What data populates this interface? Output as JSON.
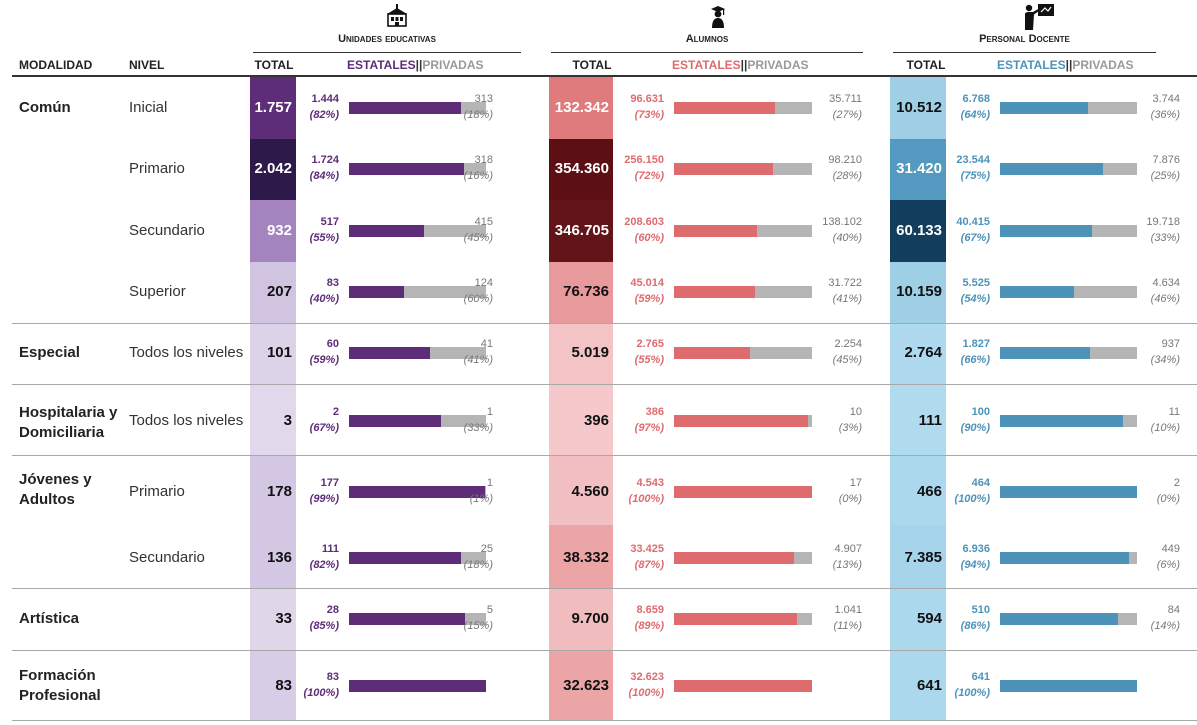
{
  "chart_data": {
    "type": "table",
    "headers": {
      "modalidad": "MODALIDAD",
      "nivel": "NIVEL",
      "total": "TOTAL",
      "estatales": "ESTATALES",
      "separator": "||",
      "privadas": "PRIVADAS"
    },
    "sections": [
      {
        "key": "unidades",
        "title": "Unidades educativas",
        "icon": "school-building-icon",
        "color": "#5e2d79"
      },
      {
        "key": "alumnos",
        "title": "Alumnos",
        "icon": "graduate-student-icon",
        "color": "#de6b6e"
      },
      {
        "key": "docentes",
        "title": "Personal Docente",
        "icon": "teacher-board-icon",
        "color": "#4d93b9"
      }
    ],
    "groups": [
      {
        "modalidad": "Común",
        "rows": [
          {
            "nivel": "Inicial",
            "values": [
              {
                "total": "1.757",
                "estatal": "1.444",
                "estatal_pct": "(82%)",
                "privada": "313",
                "privada_pct": "(18%)",
                "share": 0.82,
                "fill": "#5e2d79",
                "text": "#ffffff"
              },
              {
                "total": "132.342",
                "estatal": "96.631",
                "estatal_pct": "(73%)",
                "privada": "35.711",
                "privada_pct": "(27%)",
                "share": 0.73,
                "fill": "#df7a7d",
                "text": "#ffffff"
              },
              {
                "total": "10.512",
                "estatal": "6.768",
                "estatal_pct": "(64%)",
                "privada": "3.744",
                "privada_pct": "(36%)",
                "share": 0.64,
                "fill": "#9fcfe5",
                "text": "#111111"
              }
            ]
          },
          {
            "nivel": "Primario",
            "values": [
              {
                "total": "2.042",
                "estatal": "1.724",
                "estatal_pct": "(84%)",
                "privada": "318",
                "privada_pct": "(16%)",
                "share": 0.84,
                "fill": "#2e1a4a",
                "text": "#ffffff"
              },
              {
                "total": "354.360",
                "estatal": "256.150",
                "estatal_pct": "(72%)",
                "privada": "98.210",
                "privada_pct": "(28%)",
                "share": 0.72,
                "fill": "#5c1014",
                "text": "#ffffff"
              },
              {
                "total": "31.420",
                "estatal": "23.544",
                "estatal_pct": "(75%)",
                "privada": "7.876",
                "privada_pct": "(25%)",
                "share": 0.75,
                "fill": "#5399c0",
                "text": "#ffffff"
              }
            ]
          },
          {
            "nivel": "Secundario",
            "values": [
              {
                "total": "932",
                "estatal": "517",
                "estatal_pct": "(55%)",
                "privada": "415",
                "privada_pct": "(45%)",
                "share": 0.55,
                "fill": "#a484bf",
                "text": "#ffffff"
              },
              {
                "total": "346.705",
                "estatal": "208.603",
                "estatal_pct": "(60%)",
                "privada": "138.102",
                "privada_pct": "(40%)",
                "share": 0.6,
                "fill": "#621418",
                "text": "#ffffff"
              },
              {
                "total": "60.133",
                "estatal": "40.415",
                "estatal_pct": "(67%)",
                "privada": "19.718",
                "privada_pct": "(33%)",
                "share": 0.67,
                "fill": "#123d5c",
                "text": "#ffffff"
              }
            ]
          },
          {
            "nivel": "Superior",
            "values": [
              {
                "total": "207",
                "estatal": "83",
                "estatal_pct": "(40%)",
                "privada": "124",
                "privada_pct": "(60%)",
                "share": 0.4,
                "fill": "#d0c4e1",
                "text": "#111111"
              },
              {
                "total": "76.736",
                "estatal": "45.014",
                "estatal_pct": "(59%)",
                "privada": "31.722",
                "privada_pct": "(41%)",
                "share": 0.59,
                "fill": "#e8999b",
                "text": "#111111"
              },
              {
                "total": "10.159",
                "estatal": "5.525",
                "estatal_pct": "(54%)",
                "privada": "4.634",
                "privada_pct": "(46%)",
                "share": 0.54,
                "fill": "#9fcfe5",
                "text": "#111111"
              }
            ]
          }
        ]
      },
      {
        "modalidad": "Especial",
        "rows": [
          {
            "nivel": "Todos los niveles",
            "values": [
              {
                "total": "101",
                "estatal": "60",
                "estatal_pct": "(59%)",
                "privada": "41",
                "privada_pct": "(41%)",
                "share": 0.59,
                "fill": "#ddd3e9",
                "text": "#111111"
              },
              {
                "total": "5.019",
                "estatal": "2.765",
                "estatal_pct": "(55%)",
                "privada": "2.254",
                "privada_pct": "(45%)",
                "share": 0.55,
                "fill": "#f3c3c5",
                "text": "#111111"
              },
              {
                "total": "2.764",
                "estatal": "1.827",
                "estatal_pct": "(66%)",
                "privada": "937",
                "privada_pct": "(34%)",
                "share": 0.66,
                "fill": "#aed9ee",
                "text": "#111111"
              }
            ]
          }
        ]
      },
      {
        "modalidad": "Hospitalaria y Domiciliaria",
        "rows": [
          {
            "nivel": "Todos los niveles",
            "values": [
              {
                "total": "3",
                "estatal": "2",
                "estatal_pct": "(67%)",
                "privada": "1",
                "privada_pct": "(33%)",
                "share": 0.67,
                "fill": "#e1d8ec",
                "text": "#111111"
              },
              {
                "total": "396",
                "estatal": "386",
                "estatal_pct": "(97%)",
                "privada": "10",
                "privada_pct": "(3%)",
                "share": 0.97,
                "fill": "#f5c9cb",
                "text": "#111111"
              },
              {
                "total": "111",
                "estatal": "100",
                "estatal_pct": "(90%)",
                "privada": "11",
                "privada_pct": "(10%)",
                "share": 0.9,
                "fill": "#b0daee",
                "text": "#111111"
              }
            ]
          }
        ]
      },
      {
        "modalidad": "Jóvenes y Adultos",
        "rows": [
          {
            "nivel": "Primario",
            "values": [
              {
                "total": "178",
                "estatal": "177",
                "estatal_pct": "(99%)",
                "privada": "1",
                "privada_pct": "(1%)",
                "share": 0.99,
                "fill": "#d3c7e3",
                "text": "#111111"
              },
              {
                "total": "4.560",
                "estatal": "4.543",
                "estatal_pct": "(100%)",
                "privada": "17",
                "privada_pct": "(0%)",
                "share": 1.0,
                "fill": "#f2c0c2",
                "text": "#111111"
              },
              {
                "total": "466",
                "estatal": "464",
                "estatal_pct": "(100%)",
                "privada": "2",
                "privada_pct": "(0%)",
                "share": 1.0,
                "fill": "#acd8ed",
                "text": "#111111"
              }
            ]
          },
          {
            "nivel": "Secundario",
            "values": [
              {
                "total": "136",
                "estatal": "111",
                "estatal_pct": "(82%)",
                "privada": "25",
                "privada_pct": "(18%)",
                "share": 0.82,
                "fill": "#d3c7e3",
                "text": "#111111"
              },
              {
                "total": "38.332",
                "estatal": "33.425",
                "estatal_pct": "(87%)",
                "privada": "4.907",
                "privada_pct": "(13%)",
                "share": 0.87,
                "fill": "#eba5a7",
                "text": "#111111"
              },
              {
                "total": "7.385",
                "estatal": "6.936",
                "estatal_pct": "(94%)",
                "privada": "449",
                "privada_pct": "(6%)",
                "share": 0.94,
                "fill": "#a6d4eb",
                "text": "#111111"
              }
            ]
          }
        ]
      },
      {
        "modalidad": "Artística",
        "rows": [
          {
            "nivel": "",
            "values": [
              {
                "total": "33",
                "estatal": "28",
                "estatal_pct": "(85%)",
                "privada": "5",
                "privada_pct": "(15%)",
                "share": 0.85,
                "fill": "#dfd6ea",
                "text": "#111111"
              },
              {
                "total": "9.700",
                "estatal": "8.659",
                "estatal_pct": "(89%)",
                "privada": "1.041",
                "privada_pct": "(11%)",
                "share": 0.89,
                "fill": "#f1bcbe",
                "text": "#111111"
              },
              {
                "total": "594",
                "estatal": "510",
                "estatal_pct": "(86%)",
                "privada": "84",
                "privada_pct": "(14%)",
                "share": 0.86,
                "fill": "#acd8ed",
                "text": "#111111"
              }
            ]
          }
        ]
      },
      {
        "modalidad": "Formación Profesional",
        "rows": [
          {
            "nivel": "",
            "values": [
              {
                "total": "83",
                "estatal": "83",
                "estatal_pct": "(100%)",
                "privada": "",
                "privada_pct": "",
                "share": 1.0,
                "fill": "#d8cde6",
                "text": "#111111"
              },
              {
                "total": "32.623",
                "estatal": "32.623",
                "estatal_pct": "(100%)",
                "privada": "",
                "privada_pct": "",
                "share": 1.0,
                "fill": "#eba5a7",
                "text": "#111111"
              },
              {
                "total": "641",
                "estatal": "641",
                "estatal_pct": "(100%)",
                "privada": "",
                "privada_pct": "",
                "share": 1.0,
                "fill": "#acd8ed",
                "text": "#111111"
              }
            ]
          }
        ]
      }
    ]
  }
}
